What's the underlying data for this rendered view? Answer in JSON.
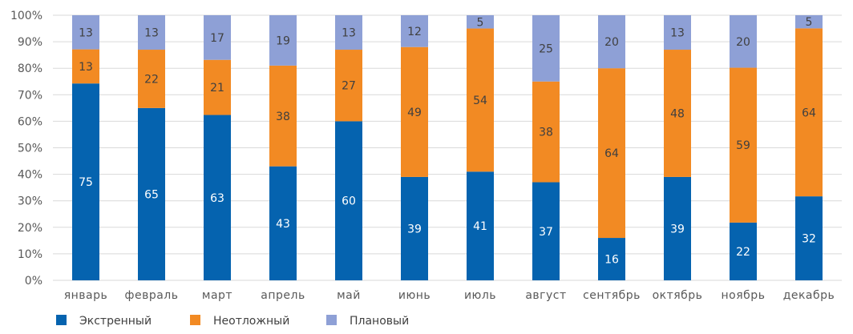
{
  "chart_data": {
    "type": "bar",
    "stacked": true,
    "normalized": true,
    "categories": [
      "январь",
      "февраль",
      "март",
      "апрель",
      "май",
      "июнь",
      "июль",
      "август",
      "сентябрь",
      "октябрь",
      "ноябрь",
      "декабрь"
    ],
    "series": [
      {
        "name": "Экстренный",
        "color": "#0563AF",
        "label_color": "#ffffff",
        "values": [
          75,
          65,
          63,
          43,
          60,
          39,
          41,
          37,
          16,
          39,
          22,
          32
        ]
      },
      {
        "name": "Неотложный",
        "color": "#F28A23",
        "label_color": "#404040",
        "values": [
          13,
          22,
          21,
          38,
          27,
          49,
          54,
          38,
          64,
          48,
          59,
          64
        ]
      },
      {
        "name": "Плановый",
        "color": "#8EA0D6",
        "label_color": "#404040",
        "values": [
          13,
          13,
          17,
          19,
          13,
          12,
          5,
          25,
          20,
          13,
          20,
          5
        ]
      }
    ],
    "yticks": [
      "0%",
      "10%",
      "20%",
      "30%",
      "40%",
      "50%",
      "60%",
      "70%",
      "80%",
      "90%",
      "100%"
    ],
    "ylim": [
      0,
      100
    ],
    "grid": true,
    "legend": "bottom-left"
  }
}
